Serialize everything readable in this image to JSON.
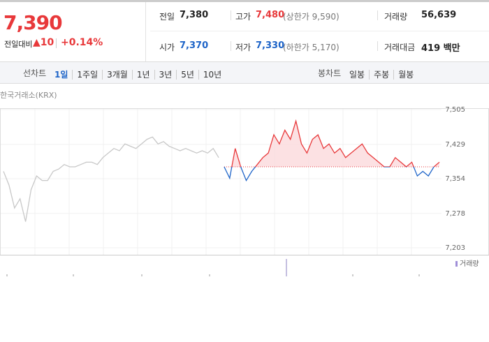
{
  "header": {
    "price": "7,390",
    "change_label": "전일대비",
    "change": "10",
    "change_pct": "+0.14%",
    "stats": [
      {
        "label": "전일",
        "value": "7,380"
      },
      {
        "label": "고가",
        "value": "7,480",
        "note": "(상한가 9,590)"
      },
      {
        "label": "거래량",
        "value": "56,639"
      },
      {
        "label": "시가",
        "value": "7,370"
      },
      {
        "label": "저가",
        "value": "7,330",
        "note": "(하한가 5,170)"
      },
      {
        "label": "거래대금",
        "value": "419 백만"
      }
    ]
  },
  "tabs": {
    "line_label": "선차트",
    "line": [
      "1일",
      "1주일",
      "3개월",
      "1년",
      "3년",
      "5년",
      "10년"
    ],
    "candle_label": "봉차트",
    "candle": [
      "일봉",
      "주봉",
      "월봉"
    ]
  },
  "chart_data": {
    "type": "line",
    "source": "한국거래소(KRX)",
    "volume_label": "거래량",
    "categories": [
      null,
      null,
      null,
      null,
      null,
      null,
      null,
      null,
      null,
      null,
      null,
      null,
      null,
      null,
      null,
      null,
      null,
      null,
      null,
      null,
      null,
      null,
      null,
      null,
      null,
      null,
      null,
      null,
      null,
      null,
      null,
      null,
      null,
      null,
      null,
      null,
      null,
      null,
      null,
      null,
      null,
      null,
      null,
      null,
      null,
      null,
      null,
      null,
      null,
      null,
      null,
      null,
      null,
      null,
      null,
      null,
      null,
      null,
      null,
      null,
      null,
      null,
      null,
      null,
      null,
      null,
      null,
      null,
      null,
      null,
      null,
      null,
      null,
      null,
      null,
      null,
      null,
      null,
      null,
      null
    ],
    "series": [
      {
        "color": "#c8c8c8",
        "values": [
          7370,
          7340,
          7290,
          7310,
          7260,
          7330,
          7360,
          7350,
          7350,
          7370,
          7375,
          7385,
          7380,
          7380,
          7385,
          7390,
          7390,
          7385,
          7400,
          7410,
          7420,
          7415,
          7430,
          7425,
          7420,
          7430,
          7440,
          7445,
          7430,
          7435,
          7425,
          7420,
          7415,
          7420,
          7415,
          7410,
          7415,
          7410,
          7420,
          7400,
          null,
          null,
          null,
          null,
          null,
          null,
          null,
          null,
          null,
          null,
          null,
          null,
          null,
          null,
          null,
          null,
          null,
          null,
          null,
          null,
          null,
          null,
          null,
          null,
          null,
          null,
          null,
          null,
          null,
          null,
          null,
          null,
          null,
          null,
          null,
          null,
          null,
          null,
          null,
          null
        ]
      },
      {
        "color": "#e8383a",
        "down_color": "#1e64c8",
        "fill": "#fbd9dc",
        "values": [
          null,
          null,
          null,
          null,
          null,
          null,
          null,
          null,
          null,
          null,
          null,
          null,
          null,
          null,
          null,
          null,
          null,
          null,
          null,
          null,
          null,
          null,
          null,
          null,
          null,
          null,
          null,
          null,
          null,
          null,
          null,
          null,
          null,
          null,
          null,
          null,
          null,
          null,
          null,
          null,
          7380,
          7355,
          7420,
          7380,
          7350,
          7370,
          7385,
          7400,
          7410,
          7450,
          7430,
          7460,
          7440,
          7480,
          7430,
          7410,
          7440,
          7450,
          7420,
          7430,
          7410,
          7420,
          7400,
          7410,
          7420,
          7430,
          7410,
          7400,
          7390,
          7380,
          7380,
          7400,
          7390,
          7380,
          7390,
          7360,
          7370,
          7360,
          7380,
          7390
        ]
      }
    ],
    "baseline": 7380,
    "ylim": [
      7203,
      7505
    ],
    "yticks": [
      {
        "value": 7203,
        "label": "7,203"
      },
      {
        "value": 7278,
        "label": "7,278"
      },
      {
        "value": 7354,
        "label": "7,354"
      },
      {
        "value": 7429,
        "label": "7,429"
      },
      {
        "value": 7505,
        "label": "7,505"
      }
    ],
    "grid": true
  }
}
